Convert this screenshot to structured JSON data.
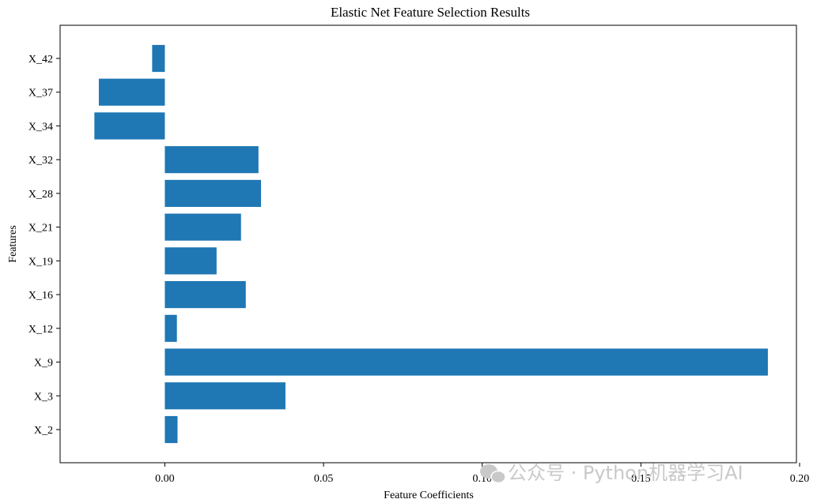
{
  "watermark": {
    "text": "公众号 · Python机器学习AI",
    "icon": "wechat-icon"
  },
  "chart_data": {
    "type": "bar",
    "orientation": "horizontal",
    "title": "Elastic Net Feature Selection Results",
    "xlabel": "Feature Coefficients",
    "ylabel": "Features",
    "categories": [
      "X_2",
      "X_3",
      "X_9",
      "X_12",
      "X_16",
      "X_19",
      "X_21",
      "X_28",
      "X_32",
      "X_34",
      "X_37",
      "X_42"
    ],
    "values": [
      0.004,
      0.038,
      0.19,
      0.0038,
      0.0255,
      0.0163,
      0.024,
      0.0303,
      0.0295,
      -0.0222,
      -0.0208,
      -0.004
    ],
    "xlim": [
      -0.033,
      0.199
    ],
    "xticks": [
      0.0,
      0.05,
      0.1,
      0.15,
      0.2
    ],
    "xtick_labels": [
      "0.00",
      "0.05",
      "0.10",
      "0.15",
      "0.20"
    ],
    "bar_color": "#1f77b4",
    "grid": false,
    "legend": "none"
  }
}
